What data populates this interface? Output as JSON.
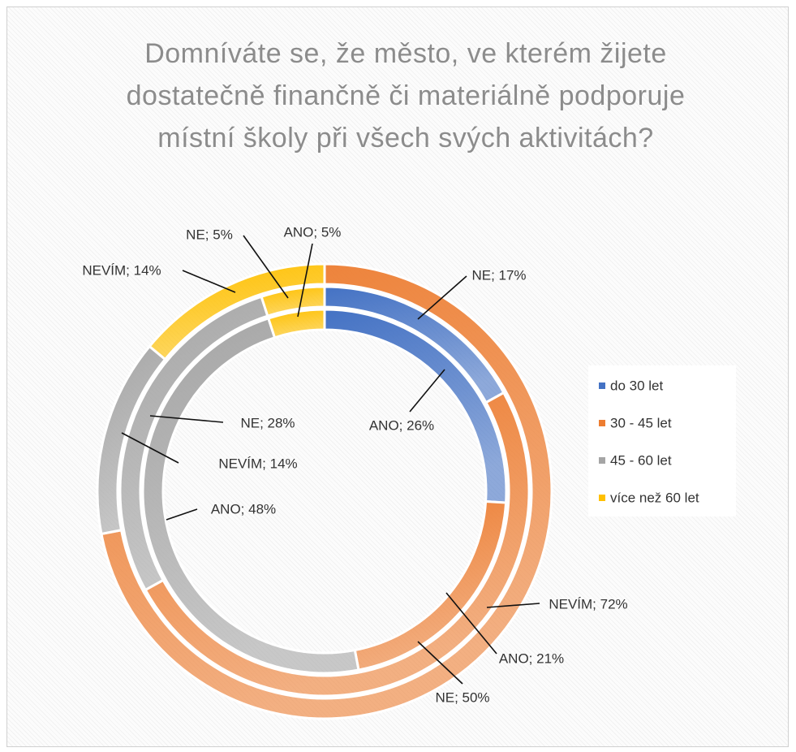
{
  "chart_data": {
    "type": "donut",
    "title": "Domníváte se, že město, ve kterém žijete dostatečně finančně či materiálně podporuje místní školy při všech svých aktivitách?",
    "categories": [
      "do 30 let",
      "30 - 45 let",
      "45 - 60 let",
      "více než 60 let"
    ],
    "colors": [
      "#4472c4",
      "#ed7d31",
      "#a5a5a5",
      "#ffc000"
    ],
    "series": [
      {
        "values": [
          26,
          21,
          48,
          5
        ],
        "value_labels": [
          "ANO; 26%",
          "ANO; 21%",
          "ANO; 48%",
          "ANO; 5%"
        ]
      },
      {
        "values": [
          17,
          50,
          28,
          5
        ],
        "value_labels": [
          "NE; 17%",
          "NE; 50%",
          "NE; 28%",
          "NE; 5%"
        ]
      },
      {
        "values": [
          0,
          72,
          14,
          14
        ],
        "value_labels": [
          null,
          "NEVÍM; 72%",
          "NEVÍM; 14%",
          "NEVÍM; 14%"
        ]
      }
    ],
    "legend": "right"
  }
}
